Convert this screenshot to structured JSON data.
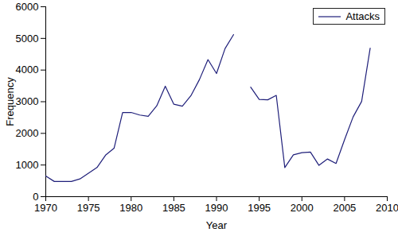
{
  "chart_data": {
    "type": "line",
    "x": [
      1970,
      1971,
      1972,
      1973,
      1974,
      1975,
      1976,
      1977,
      1978,
      1979,
      1980,
      1981,
      1982,
      1983,
      1984,
      1985,
      1986,
      1987,
      1988,
      1989,
      1990,
      1991,
      1992,
      1993,
      1994,
      1995,
      1996,
      1997,
      1998,
      1999,
      2000,
      2001,
      2002,
      2003,
      2004,
      2005,
      2006,
      2007,
      2008
    ],
    "series": [
      {
        "name": "Attacks",
        "color": "#1f1f7a",
        "values": [
          650,
          480,
          480,
          480,
          560,
          740,
          920,
          1310,
          1530,
          2660,
          2660,
          2580,
          2540,
          2870,
          3490,
          2920,
          2860,
          3190,
          3700,
          4330,
          3890,
          4680,
          5120,
          null,
          3460,
          3070,
          3060,
          3200,
          920,
          1320,
          1390,
          1410,
          990,
          1190,
          1050,
          1800,
          2520,
          3010,
          4690
        ]
      }
    ],
    "xlabel": "Year",
    "ylabel": "Frequency",
    "xlim": [
      1970,
      2010
    ],
    "ylim": [
      0,
      6000
    ],
    "xticks": [
      1970,
      1975,
      1980,
      1985,
      1990,
      1995,
      2000,
      2005,
      2010
    ],
    "yticks": [
      0,
      1000,
      2000,
      3000,
      4000,
      5000,
      6000
    ],
    "legend": "upper right"
  }
}
